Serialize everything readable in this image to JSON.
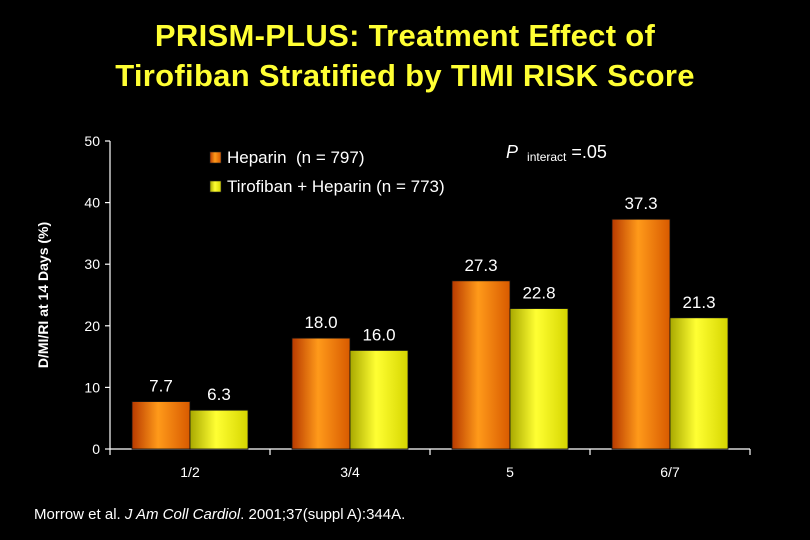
{
  "title_line1": "PRISM-PLUS: Treatment Effect of",
  "title_line2": "Tirofiban Stratified by TIMI RISK Score",
  "citation": {
    "authors": "Morrow et al. ",
    "journal": "J Am Coll Cardiol",
    "rest": ". 2001;37(suppl A):344A."
  },
  "colors": {
    "background": "#000000",
    "title": "#FFFF33",
    "heparin": "#FF8800",
    "tirofiban": "#FFFF00",
    "text": "#FFFFFF"
  },
  "chart_data": {
    "type": "bar",
    "categories": [
      "1/2",
      "3/4",
      "5",
      "6/7"
    ],
    "series": [
      {
        "name": "Heparin  (n = 797)",
        "values": [
          7.7,
          18.0,
          27.3,
          37.3
        ],
        "labels": [
          "7.7",
          "18.0",
          "27.3",
          "37.3"
        ]
      },
      {
        "name": "Tirofiban + Heparin (n = 773)",
        "values": [
          6.3,
          16.0,
          22.8,
          21.3
        ],
        "labels": [
          "6.3",
          "16.0",
          "22.8",
          "21.3"
        ]
      }
    ],
    "ylabel": "D/MI/RI at 14 Days (%)",
    "xlabel": "",
    "ylim": [
      0,
      50
    ],
    "yticks": [
      0,
      10,
      20,
      30,
      40,
      50
    ],
    "legend_position": "top-left",
    "annotation": {
      "p_symbol": "P",
      "p_subscript": "interact",
      "p_value": " =.05"
    }
  }
}
